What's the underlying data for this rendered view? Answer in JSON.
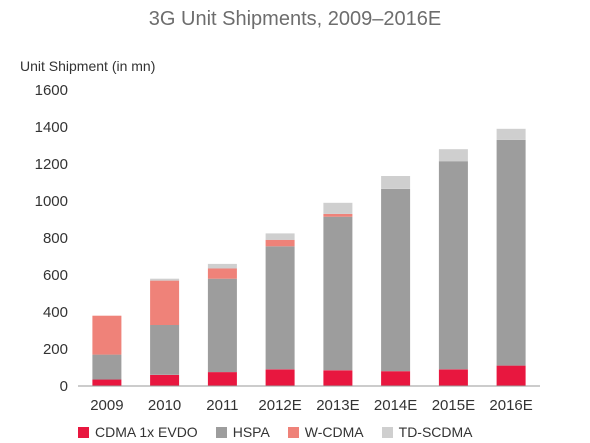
{
  "chart_data": {
    "type": "bar",
    "stacked": true,
    "title": "3G Unit Shipments, 2009–2016E",
    "ylabel": "Unit Shipment (in mn)",
    "xlabel": "",
    "ylim": [
      0,
      1600
    ],
    "yticks": [
      0,
      200,
      400,
      600,
      800,
      1000,
      1200,
      1400,
      1600
    ],
    "grid": false,
    "legend_position": "bottom",
    "categories": [
      "2009",
      "2010",
      "2011",
      "2012E",
      "2013E",
      "2014E",
      "2015E",
      "2016E"
    ],
    "series": [
      {
        "name": "CDMA 1x EVDO",
        "color": "#e8173f",
        "values": [
          35,
          60,
          75,
          90,
          85,
          80,
          90,
          110
        ]
      },
      {
        "name": "HSPA",
        "color": "#9d9d9d",
        "values": [
          135,
          270,
          505,
          665,
          830,
          985,
          1125,
          1220
        ]
      },
      {
        "name": "W-CDMA",
        "color": "#ef8279",
        "values": [
          210,
          240,
          55,
          35,
          15,
          0,
          0,
          0
        ]
      },
      {
        "name": "TD-SCDMA",
        "color": "#cfcfcf",
        "values": [
          0,
          10,
          25,
          35,
          60,
          70,
          65,
          60
        ]
      }
    ]
  }
}
